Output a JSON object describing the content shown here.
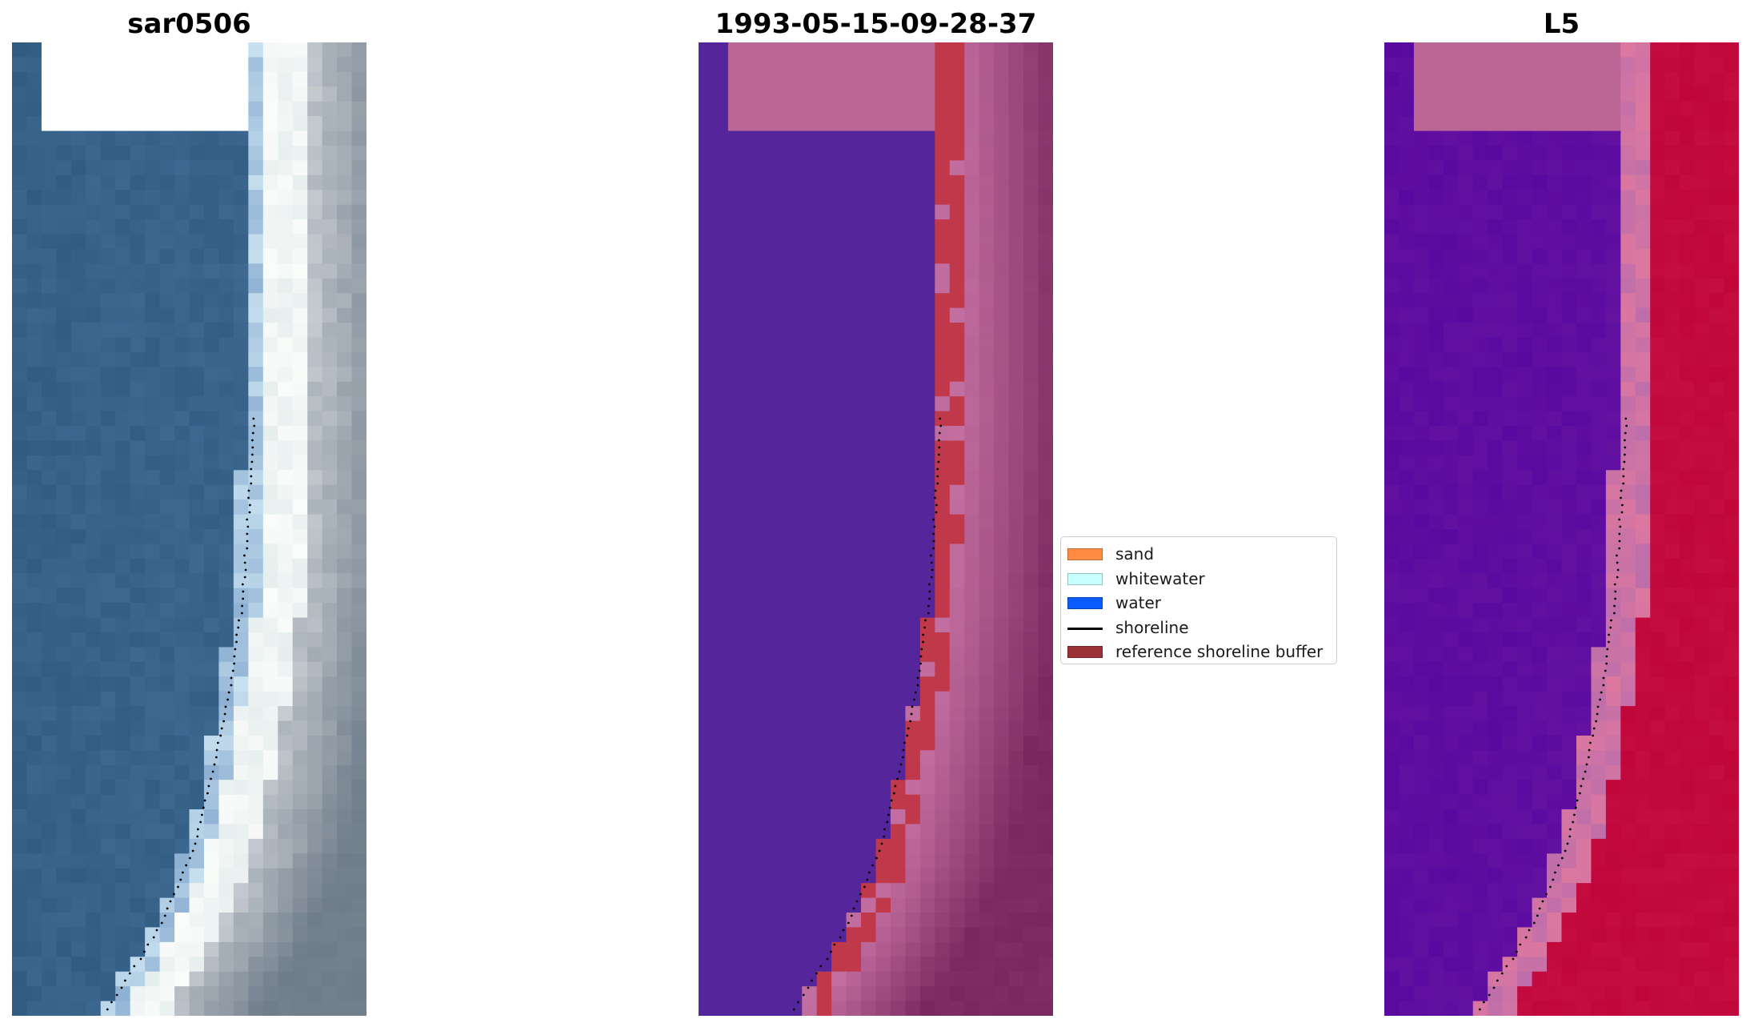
{
  "panels": [
    {
      "id": "rgb",
      "title": "sar0506",
      "kind": "rgb"
    },
    {
      "id": "classified",
      "title": "1993-05-15-09-28-37",
      "kind": "classified"
    },
    {
      "id": "mndwi",
      "title": "L5",
      "kind": "mndwi"
    }
  ],
  "legend": {
    "items": [
      {
        "label": "sand",
        "type": "patch",
        "color": "#ff8c42"
      },
      {
        "label": "whitewater",
        "type": "patch",
        "color": "#c8ffff"
      },
      {
        "label": "water",
        "type": "patch",
        "color": "#0a5cff"
      },
      {
        "label": "shoreline",
        "type": "line",
        "color": "#000000"
      },
      {
        "label": "reference shoreline buffer",
        "type": "patch",
        "color": "#9b3136"
      }
    ]
  },
  "colors": {
    "nodata": "#ffffff",
    "nodata_overlay": "#bb6695",
    "water_class": "#55259b",
    "buffer": "#c0394a",
    "land_overlay": "#ab5c8e",
    "mndwi_water": "#5a09a0",
    "mndwi_land": "#c0063a",
    "shoreline_dots": "#000000"
  }
}
